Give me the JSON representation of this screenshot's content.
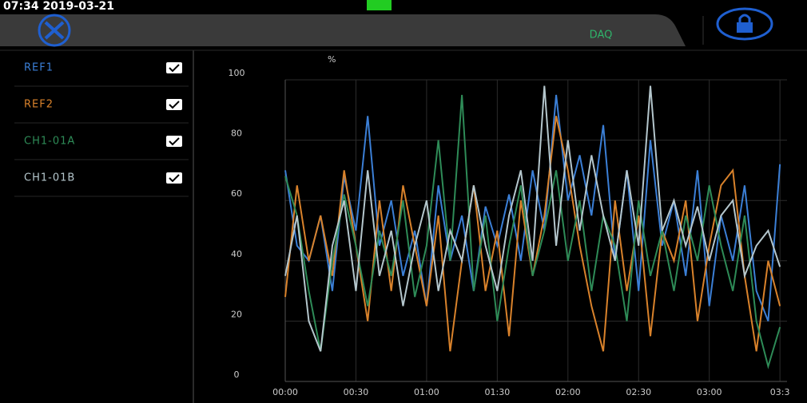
{
  "status_bar": {
    "datetime": "07:34 2019-03-21"
  },
  "header": {
    "title": "DAQ"
  },
  "chart_data": {
    "type": "line",
    "y_label": "%",
    "x": [
      0,
      5,
      10,
      15,
      20,
      25,
      30,
      35,
      40,
      45,
      50,
      55,
      60,
      65,
      70,
      75,
      80,
      85,
      90,
      95,
      100,
      105,
      110,
      115,
      120,
      125,
      130,
      135,
      140,
      145,
      150,
      155,
      160,
      165,
      170,
      175,
      180,
      185,
      190,
      195,
      200,
      205,
      210
    ],
    "xlim": [
      0,
      213
    ],
    "xticks": [
      {
        "value": 0,
        "label": "00:00"
      },
      {
        "value": 30,
        "label": "00:30"
      },
      {
        "value": 60,
        "label": "01:00"
      },
      {
        "value": 90,
        "label": "01:30"
      },
      {
        "value": 120,
        "label": "02:00"
      },
      {
        "value": 150,
        "label": "02:30"
      },
      {
        "value": 180,
        "label": "03:00"
      },
      {
        "value": 210,
        "label": "03:3"
      }
    ],
    "ylim": [
      0,
      100
    ],
    "yticks": [
      0,
      20,
      40,
      60,
      80,
      100
    ],
    "grid": true,
    "series": [
      {
        "name": "REF1",
        "color": "#3b7fd6",
        "values": [
          70,
          45,
          40,
          55,
          30,
          68,
          50,
          88,
          45,
          60,
          35,
          50,
          25,
          65,
          40,
          55,
          30,
          58,
          45,
          62,
          40,
          70,
          50,
          95,
          60,
          75,
          55,
          85,
          40,
          70,
          30,
          80,
          45,
          60,
          35,
          70,
          25,
          55,
          40,
          65,
          30,
          20,
          72
        ]
      },
      {
        "name": "REF2",
        "color": "#d9822b",
        "values": [
          28,
          65,
          40,
          55,
          35,
          70,
          45,
          20,
          60,
          30,
          65,
          45,
          25,
          55,
          10,
          40,
          65,
          30,
          50,
          15,
          60,
          35,
          55,
          88,
          70,
          45,
          25,
          10,
          60,
          30,
          55,
          15,
          50,
          40,
          60,
          20,
          45,
          65,
          70,
          35,
          10,
          40,
          25
        ]
      },
      {
        "name": "CH1-01A",
        "color": "#2e8b57",
        "values": [
          68,
          55,
          30,
          10,
          40,
          62,
          45,
          25,
          50,
          35,
          60,
          28,
          45,
          80,
          40,
          95,
          30,
          55,
          20,
          45,
          65,
          35,
          50,
          70,
          40,
          60,
          30,
          55,
          45,
          20,
          60,
          35,
          50,
          30,
          55,
          40,
          65,
          45,
          30,
          55,
          20,
          5,
          18
        ]
      },
      {
        "name": "CH1-01B",
        "color": "#b4c6cc",
        "values": [
          35,
          55,
          20,
          10,
          45,
          60,
          30,
          70,
          35,
          50,
          25,
          45,
          60,
          30,
          50,
          40,
          65,
          45,
          30,
          55,
          70,
          40,
          98,
          45,
          80,
          50,
          75,
          55,
          40,
          70,
          45,
          98,
          50,
          60,
          45,
          58,
          40,
          55,
          60,
          35,
          45,
          50,
          38
        ]
      }
    ]
  }
}
